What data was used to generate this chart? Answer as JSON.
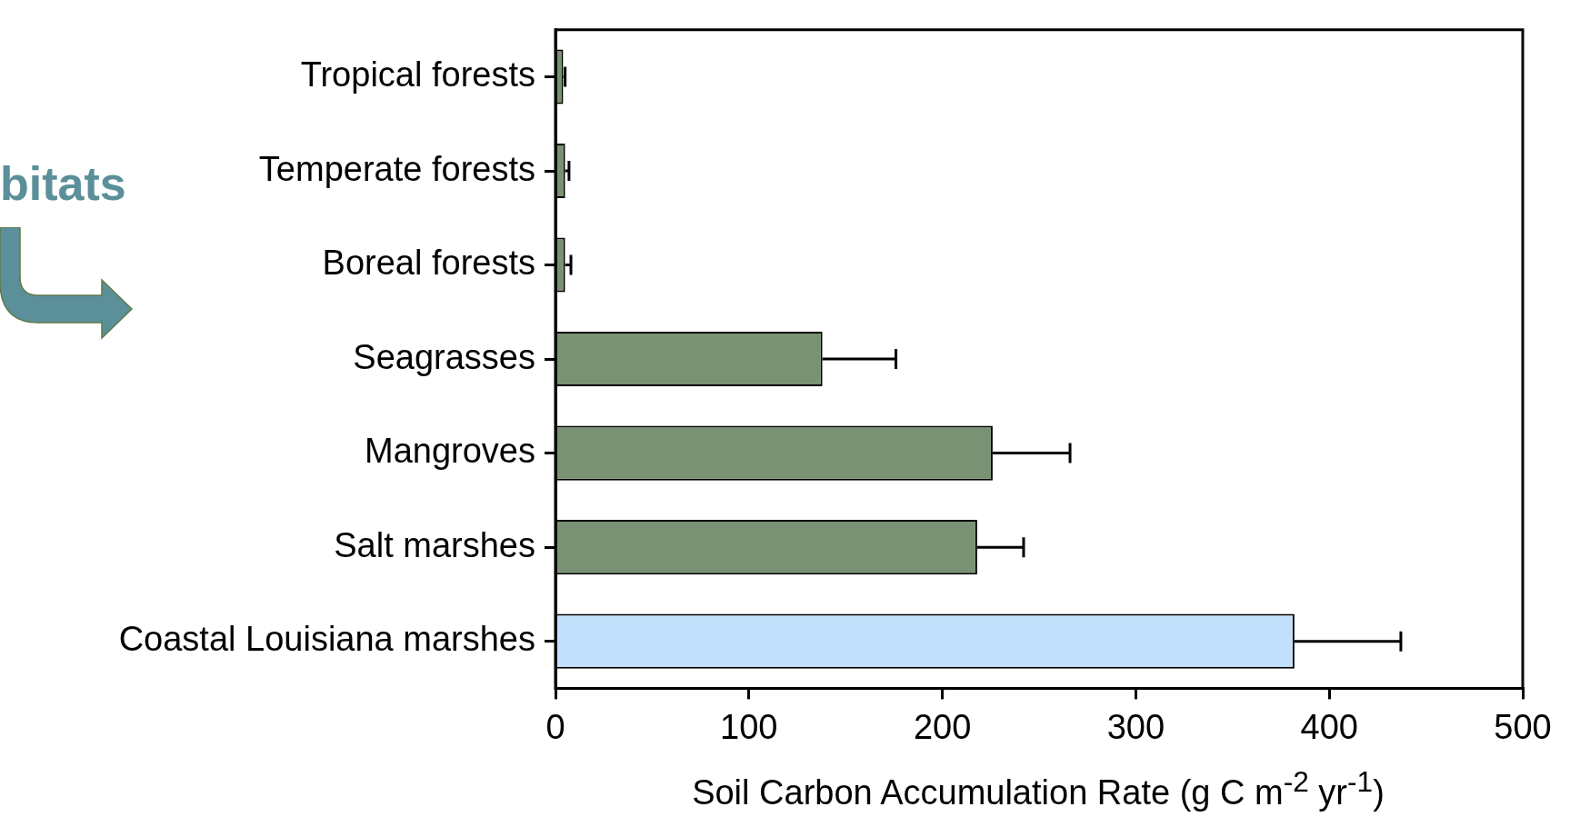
{
  "chart_data": {
    "type": "bar",
    "orientation": "horizontal",
    "categories": [
      "Tropical forests",
      "Temperate forests",
      "Boreal forests",
      "Seagrasses",
      "Mangroves",
      "Salt marshes",
      "Coastal Louisiana marshes"
    ],
    "values": [
      4,
      5,
      5,
      138,
      226,
      218,
      382
    ],
    "errors": [
      1,
      2,
      3,
      38,
      40,
      24,
      55
    ],
    "colors": [
      "#7a9273",
      "#7a9273",
      "#7a9273",
      "#7a9273",
      "#7a9273",
      "#7a9273",
      "#c2e0fc"
    ],
    "xlim": [
      0,
      500
    ],
    "xticks": [
      0,
      100,
      200,
      300,
      400,
      500
    ],
    "xlabel": "Soil Carbon Accumulation Rate (g C m$^{-2}$ yr$^{-1}$)",
    "annotations": [
      "bitats"
    ],
    "grid": false,
    "legend": false
  }
}
